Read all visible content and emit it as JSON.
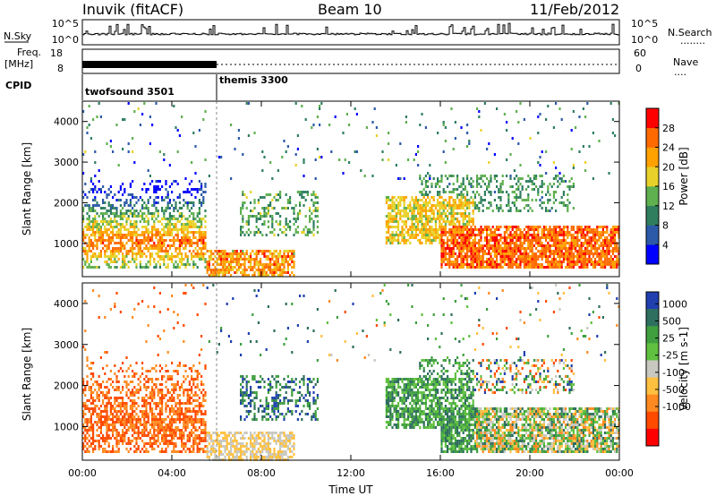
{
  "header": {
    "station": "Inuvik (fitACF)",
    "beam": "Beam 10",
    "date": "11/Feb/2012"
  },
  "panels": {
    "nsky": {
      "left_label": "N.Sky",
      "left_ticks": [
        "10^5",
        "10^0"
      ],
      "right_ticks": [
        "10^5",
        "10^0"
      ],
      "right_label": "N.Search",
      "right_dots": "........"
    },
    "freq": {
      "left_label": "Freq.",
      "left_unit": "[MHz]",
      "left_ticks": [
        "18",
        "8"
      ],
      "right_ticks": [
        "60",
        "0"
      ],
      "right_label": "Nave",
      "right_dots": "...."
    },
    "cpid": {
      "label": "CPID",
      "modes": [
        "twofsound 3501",
        "themis 3300"
      ]
    }
  },
  "chart_data": [
    {
      "type": "heatmap",
      "title": "Power",
      "ylabel": "Slant Range [km]",
      "xlabel": "Time UT",
      "x_ticks": [
        "00:00",
        "04:00",
        "08:00",
        "12:00",
        "16:00",
        "20:00",
        "00:00"
      ],
      "y_ticks": [
        1000,
        2000,
        3000,
        4000
      ],
      "ylim": [
        180,
        4500
      ],
      "colorbar": {
        "label": "Power [dB]",
        "ticks": [
          "4",
          "8",
          "12",
          "16",
          "20",
          "24",
          "28"
        ],
        "colors": [
          "#0000ff",
          "#2c5aa8",
          "#2f7f5f",
          "#5fb04f",
          "#e8d22a",
          "#ffa200",
          "#ff6a00",
          "#ff0000"
        ]
      }
    },
    {
      "type": "heatmap",
      "title": "Velocity",
      "ylabel": "Slant Range [km]",
      "xlabel": "Time UT",
      "x_ticks": [
        "00:00",
        "04:00",
        "08:00",
        "12:00",
        "16:00",
        "20:00",
        "00:00"
      ],
      "y_ticks": [
        1000,
        2000,
        3000,
        4000
      ],
      "ylim": [
        180,
        4500
      ],
      "colorbar": {
        "label": "Velocity [m s-1]",
        "ticks": [
          "1000",
          "500",
          "25",
          "-25",
          "-100",
          "-500",
          "-1000"
        ],
        "colors": [
          "#2040b0",
          "#2f6f5f",
          "#3f9f3f",
          "#60c040",
          "#c8c8c0",
          "#ffc040",
          "#ff8a20",
          "#ff4a00",
          "#ff0000"
        ]
      }
    }
  ]
}
